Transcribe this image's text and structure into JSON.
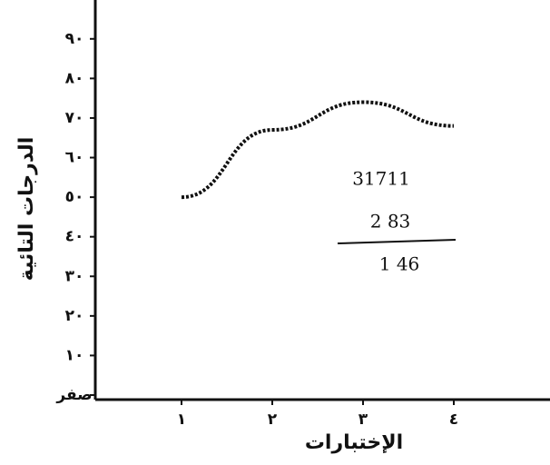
{
  "chart_data": {
    "type": "line",
    "x_label": "الإختبارات",
    "y_label": "الدرجات التائية",
    "x": [
      1,
      2,
      3,
      4
    ],
    "series": [
      {
        "color": "#111111",
        "values": [
          50,
          67,
          74,
          68
        ]
      }
    ],
    "xlim": [
      0,
      5.06
    ],
    "ylim": [
      0,
      95
    ],
    "xticks": [
      {
        "value": 1,
        "label": "١"
      },
      {
        "value": 2,
        "label": "٢"
      },
      {
        "value": 3,
        "label": "٣"
      },
      {
        "value": 4,
        "label": "٤"
      }
    ],
    "yticks": [
      {
        "value": 0,
        "label": "صفر"
      },
      {
        "value": 10,
        "label": "١٠"
      },
      {
        "value": 20,
        "label": "٢٠"
      },
      {
        "value": 30,
        "label": "٣٠"
      },
      {
        "value": 40,
        "label": "٤٠"
      },
      {
        "value": 50,
        "label": "٥٠"
      },
      {
        "value": 60,
        "label": "٦٠"
      },
      {
        "value": 70,
        "label": "٧٠"
      },
      {
        "value": 80,
        "label": "٨٠"
      },
      {
        "value": 90,
        "label": "٩٠"
      }
    ],
    "annotations": [
      "31711",
      "2 83",
      "1 46"
    ]
  }
}
